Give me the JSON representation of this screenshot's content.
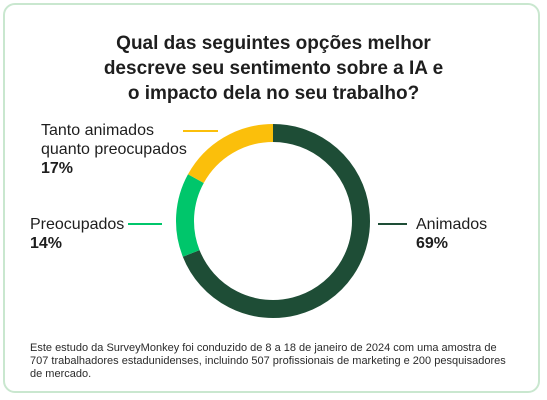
{
  "title_lines": [
    "Qual das seguintes opções melhor",
    "descreve seu sentimento sobre a IA e",
    "o impacto dela no seu trabalho?"
  ],
  "chart_data": {
    "type": "pie",
    "variant": "donut",
    "categories": [
      "Animados",
      "Preocupados",
      "Tanto animados quanto preocupados"
    ],
    "values": [
      69,
      14,
      17
    ],
    "value_labels": [
      "69%",
      "14%",
      "17%"
    ],
    "colors": [
      "#1e4d36",
      "#00c66b",
      "#fbbf0b"
    ]
  },
  "labels": {
    "animados": {
      "name_lines": [
        "Animados"
      ],
      "value": "69%"
    },
    "preocupados": {
      "name_lines": [
        "Preocupados"
      ],
      "value": "14%"
    },
    "ambos": {
      "name_lines": [
        "Tanto animados",
        "quanto preocupados"
      ],
      "value": "17%"
    }
  },
  "footnote_lines": [
    "Este estudo da SurveyMonkey foi conduzido de 8 a 18 de janeiro de 2024 com uma amostra de",
    "707 trabalhadores estadunidenses, incluindo 507 profissionais de marketing e 200 pesquisadores",
    "de mercado."
  ]
}
